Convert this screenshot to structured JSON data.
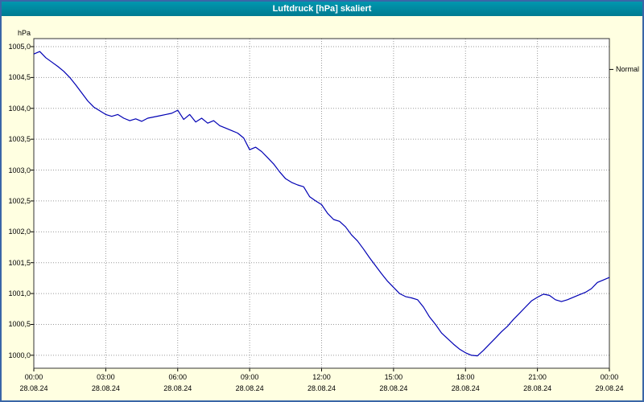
{
  "window": {
    "title": "Luftdruck [hPa] skaliert",
    "titlebar_color": "#0089A1",
    "background_color": "#FFFFE1",
    "border_color": "#3A66A7"
  },
  "chart_data": {
    "type": "line",
    "title": "Luftdruck [hPa] skaliert",
    "xlabel": "",
    "ylabel": "hPa",
    "line_color": "#0000B4",
    "grid_color": "#9A9A9A",
    "grid": true,
    "ylim": [
      999.79,
      1005.13
    ],
    "xlim_hours": [
      0,
      24
    ],
    "yticks": [
      1005.0,
      1004.5,
      1004.0,
      1003.5,
      1003.0,
      1002.5,
      1002.0,
      1001.5,
      1001.0,
      1000.5,
      1000.0
    ],
    "ytick_labels": [
      "1005,0",
      "1004,5",
      "1004,0",
      "1003,5",
      "1003,0",
      "1002,5",
      "1002,0",
      "1001,5",
      "1001,0",
      "1000,5",
      "1000,0"
    ],
    "xticks_hours": [
      0,
      3,
      6,
      9,
      12,
      15,
      18,
      21,
      24
    ],
    "xtick_time_labels": [
      "00:00",
      "03:00",
      "06:00",
      "09:00",
      "12:00",
      "15:00",
      "18:00",
      "21:00",
      "00:00"
    ],
    "xtick_date_labels": [
      "28.08.24",
      "28.08.24",
      "28.08.24",
      "28.08.24",
      "28.08.24",
      "28.08.24",
      "28.08.24",
      "28.08.24",
      "29.08.24"
    ],
    "annotations": [
      {
        "text": "Normal",
        "value": 1004.63
      }
    ],
    "points": [
      [
        0,
        1004.88
      ],
      [
        0.25,
        1004.92
      ],
      [
        0.5,
        1004.82
      ],
      [
        0.75,
        1004.75
      ],
      [
        1,
        1004.68
      ],
      [
        1.25,
        1004.6
      ],
      [
        1.5,
        1004.5
      ],
      [
        1.75,
        1004.38
      ],
      [
        2,
        1004.25
      ],
      [
        2.25,
        1004.12
      ],
      [
        2.5,
        1004.02
      ],
      [
        2.75,
        1003.96
      ],
      [
        3,
        1003.9
      ],
      [
        3.25,
        1003.87
      ],
      [
        3.5,
        1003.9
      ],
      [
        3.75,
        1003.84
      ],
      [
        4,
        1003.8
      ],
      [
        4.25,
        1003.83
      ],
      [
        4.5,
        1003.79
      ],
      [
        4.75,
        1003.84
      ],
      [
        5,
        1003.86
      ],
      [
        5.25,
        1003.88
      ],
      [
        5.5,
        1003.9
      ],
      [
        5.75,
        1003.92
      ],
      [
        6,
        1003.97
      ],
      [
        6.25,
        1003.82
      ],
      [
        6.5,
        1003.9
      ],
      [
        6.75,
        1003.78
      ],
      [
        7,
        1003.84
      ],
      [
        7.25,
        1003.76
      ],
      [
        7.5,
        1003.8
      ],
      [
        7.75,
        1003.72
      ],
      [
        8,
        1003.68
      ],
      [
        8.25,
        1003.64
      ],
      [
        8.5,
        1003.6
      ],
      [
        8.75,
        1003.52
      ],
      [
        9,
        1003.33
      ],
      [
        9.25,
        1003.37
      ],
      [
        9.5,
        1003.3
      ],
      [
        9.75,
        1003.2
      ],
      [
        10,
        1003.1
      ],
      [
        10.25,
        1002.97
      ],
      [
        10.5,
        1002.86
      ],
      [
        10.75,
        1002.8
      ],
      [
        11,
        1002.76
      ],
      [
        11.25,
        1002.73
      ],
      [
        11.5,
        1002.57
      ],
      [
        11.75,
        1002.5
      ],
      [
        12,
        1002.44
      ],
      [
        12.25,
        1002.3
      ],
      [
        12.5,
        1002.2
      ],
      [
        12.75,
        1002.17
      ],
      [
        13,
        1002.08
      ],
      [
        13.25,
        1001.95
      ],
      [
        13.5,
        1001.85
      ],
      [
        13.75,
        1001.72
      ],
      [
        14,
        1001.58
      ],
      [
        14.25,
        1001.45
      ],
      [
        14.5,
        1001.32
      ],
      [
        14.75,
        1001.2
      ],
      [
        15,
        1001.1
      ],
      [
        15.25,
        1001.0
      ],
      [
        15.5,
        1000.95
      ],
      [
        15.75,
        1000.93
      ],
      [
        16,
        1000.9
      ],
      [
        16.25,
        1000.78
      ],
      [
        16.5,
        1000.62
      ],
      [
        16.75,
        1000.5
      ],
      [
        17,
        1000.36
      ],
      [
        17.25,
        1000.27
      ],
      [
        17.5,
        1000.18
      ],
      [
        17.75,
        1000.1
      ],
      [
        18,
        1000.04
      ],
      [
        18.25,
        1000.0
      ],
      [
        18.5,
        999.99
      ],
      [
        18.75,
        1000.08
      ],
      [
        19,
        1000.18
      ],
      [
        19.25,
        1000.28
      ],
      [
        19.5,
        1000.38
      ],
      [
        19.75,
        1000.47
      ],
      [
        20,
        1000.58
      ],
      [
        20.25,
        1000.68
      ],
      [
        20.5,
        1000.78
      ],
      [
        20.75,
        1000.88
      ],
      [
        21,
        1000.94
      ],
      [
        21.25,
        1000.99
      ],
      [
        21.5,
        1000.97
      ],
      [
        21.75,
        1000.9
      ],
      [
        22,
        1000.87
      ],
      [
        22.25,
        1000.9
      ],
      [
        22.5,
        1000.94
      ],
      [
        22.75,
        1000.98
      ],
      [
        23,
        1001.02
      ],
      [
        23.25,
        1001.08
      ],
      [
        23.5,
        1001.18
      ],
      [
        23.75,
        1001.22
      ],
      [
        24,
        1001.26
      ]
    ]
  }
}
